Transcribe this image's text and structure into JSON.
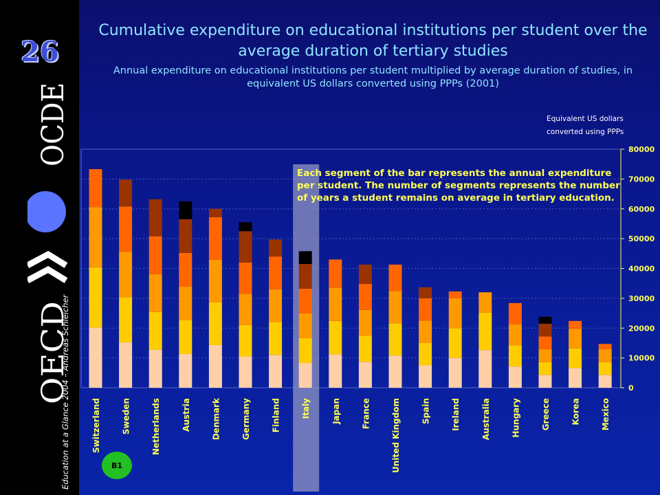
{
  "slide_number": "26",
  "logo": {
    "top_text": "OCDE",
    "bottom_text": "OECD"
  },
  "credit": "Education at a Glance 2004 – Andreas Schleicher",
  "badge": "B1",
  "chart_data": {
    "type": "bar",
    "stacked": true,
    "title": "Cumulative expenditure on educational institutions per student over the average duration of tertiary studies",
    "subtitle": "Annual expenditure on educational institutions per student multiplied by average duration of studies, in equivalent US dollars converted using PPPs (2001)",
    "unit_label": [
      "Equivalent US dollars",
      "converted using PPPs"
    ],
    "annotation": "Each segment of the bar represents the annual expenditure per student. The number of segments represents the number of years a student remains on average in tertiary education.",
    "highlight": "Italy",
    "ylim": [
      0,
      80000
    ],
    "yticks": [
      0,
      10000,
      20000,
      30000,
      40000,
      50000,
      60000,
      70000,
      80000
    ],
    "y_axis_position": "right",
    "grid": true,
    "segment_colors": [
      "#ffcfa8",
      "#ffcc00",
      "#ff9900",
      "#ff6600",
      "#993300",
      "#000000"
    ],
    "categories": [
      "Switzerland",
      "Sweden",
      "Netherlands",
      "Austria",
      "Denmark",
      "Germany",
      "Finland",
      "Italy",
      "Japan",
      "France",
      "United Kingdom",
      "Spain",
      "Ireland",
      "Australia",
      "Hungary",
      "Greece",
      "Korea",
      "Mexico"
    ],
    "annual_expenditure": [
      20200,
      15200,
      12700,
      11300,
      14300,
      10500,
      11000,
      8300,
      11200,
      8700,
      10800,
      7500,
      10000,
      12600,
      7100,
      4300,
      6600,
      4300
    ],
    "cumulative_expenditure": [
      73300,
      69800,
      63200,
      62500,
      60000,
      55500,
      49700,
      45800,
      43000,
      41300,
      41300,
      33700,
      32300,
      32000,
      28400,
      23800,
      22400,
      14700
    ]
  }
}
